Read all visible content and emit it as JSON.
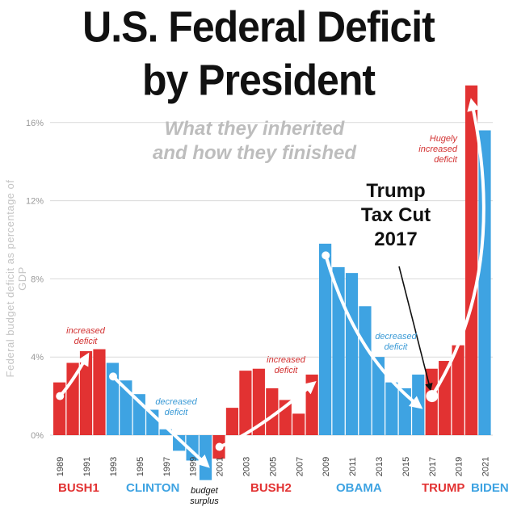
{
  "chart_data": {
    "type": "bar",
    "title": "U.S. Federal Deficit",
    "title_line2": "by President",
    "subtitle": "What they inherited",
    "subtitle_line2": "and how they finished",
    "ylabel": "Federal budget deficit as percentage of GDP",
    "ylim": [
      -2.4,
      18.2
    ],
    "yticks": [
      {
        "value": 0,
        "label": "0%"
      },
      {
        "value": 4,
        "label": "4%"
      },
      {
        "value": 8,
        "label": "8%"
      },
      {
        "value": 12,
        "label": "12%"
      },
      {
        "value": 16,
        "label": "16%"
      }
    ],
    "years": [
      1989,
      1990,
      1991,
      1992,
      1993,
      1994,
      1995,
      1996,
      1997,
      1998,
      1999,
      2000,
      2001,
      2002,
      2003,
      2004,
      2005,
      2006,
      2007,
      2008,
      2009,
      2010,
      2011,
      2012,
      2013,
      2014,
      2015,
      2016,
      2017,
      2018,
      2019,
      2020,
      2021
    ],
    "values": [
      2.7,
      3.7,
      4.3,
      4.4,
      3.7,
      2.8,
      2.1,
      1.3,
      0.3,
      -0.8,
      -1.3,
      -2.3,
      -1.2,
      1.4,
      3.3,
      3.4,
      2.4,
      1.8,
      1.1,
      3.1,
      9.8,
      8.6,
      8.3,
      6.6,
      4.0,
      2.7,
      2.4,
      3.1,
      3.4,
      3.8,
      4.6,
      17.9,
      15.6
    ],
    "tick_labels": [
      "1989",
      "1991",
      "1993",
      "1995",
      "1997",
      "1999",
      "2001",
      "2003",
      "2005",
      "2007",
      "2009",
      "2011",
      "2013",
      "2015",
      "2017",
      "2019",
      "2021"
    ],
    "presidents": [
      {
        "name": "BUSH1",
        "start": 1989,
        "end": 1992,
        "color": "#e23232"
      },
      {
        "name": "CLINTON",
        "start": 1993,
        "end": 2000,
        "color": "#3ea3e2"
      },
      {
        "name": "BUSH2",
        "start": 2001,
        "end": 2008,
        "color": "#e23232"
      },
      {
        "name": "OBAMA",
        "start": 2009,
        "end": 2016,
        "color": "#3ea3e2"
      },
      {
        "name": "TRUMP",
        "start": 2017,
        "end": 2020,
        "color": "#e23232"
      },
      {
        "name": "BIDEN",
        "start": 2021,
        "end": 2021,
        "color": "#3ea3e2"
      }
    ],
    "annotations": [
      {
        "id": "bush1",
        "lines": [
          "increased",
          "deficit"
        ],
        "color": "#d23030"
      },
      {
        "id": "clinton",
        "lines": [
          "decreased",
          "deficit"
        ],
        "color": "#3a9ad6"
      },
      {
        "id": "surplus",
        "lines": [
          "budget",
          "surplus"
        ],
        "color": "#111111"
      },
      {
        "id": "bush2",
        "lines": [
          "increased",
          "deficit"
        ],
        "color": "#d23030"
      },
      {
        "id": "obama",
        "lines": [
          "decreased",
          "deficit"
        ],
        "color": "#3a9ad6"
      },
      {
        "id": "trump",
        "lines": [
          "Hugely",
          "increased",
          "deficit"
        ],
        "color": "#d23030"
      }
    ],
    "callout": {
      "lines": [
        "Trump",
        "Tax Cut",
        "2017"
      ]
    }
  },
  "colors": {
    "red": "#e23232",
    "blue": "#3ea3e2",
    "grid": "#d9d9d9",
    "tick": "#999999"
  }
}
